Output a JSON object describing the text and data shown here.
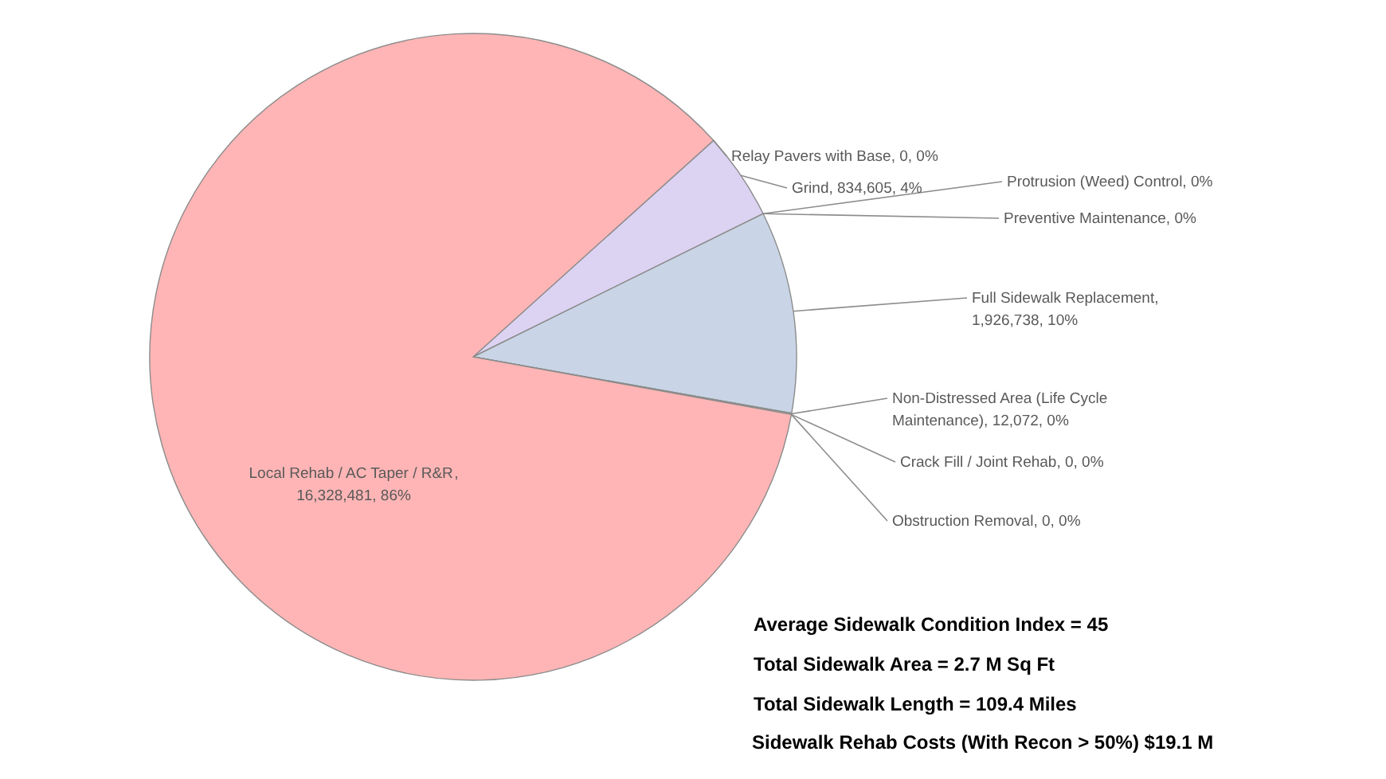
{
  "chart_data": {
    "type": "pie",
    "categories": [
      "Relay Pavers with Base",
      "Grind",
      "Protrusion (Weed) Control",
      "Preventive Maintenance",
      "Full Sidewalk Replacement",
      "Non-Distressed Area (Life Cycle Maintenance)",
      "Crack Fill / Joint Rehab",
      "Obstruction Removal",
      "Local Rehab / AC Taper / R&R"
    ],
    "values": [
      0,
      834605,
      0,
      0,
      1926738,
      12072,
      0,
      0,
      16328481
    ],
    "value_labels": [
      ", 0, 0%",
      ", 834,605, 4%",
      ", 0%",
      ", 0%",
      ", 1,926,738, 10%",
      ", 12,072, 0%",
      ", 0, 0%",
      ", 0, 0%",
      ", 16,328,481, 86%"
    ],
    "colors": [
      "#c9a3a3",
      "#dcd2f2",
      "#b8c7e0",
      "#c0c0c0",
      "#c9d5e6",
      "#d8c9a0",
      "#a8a8a8",
      "#a8a8a8",
      "#ffb5b5"
    ],
    "annotations": [
      "Average Sidewalk Condition  Index = 45",
      "Total Sidewalk Area = 2.7 M Sq Ft",
      "Total Sidewalk Length = 109.4 Miles",
      "Sidewalk Rehab Costs (With Recon > 50%) $19.1 M"
    ]
  }
}
